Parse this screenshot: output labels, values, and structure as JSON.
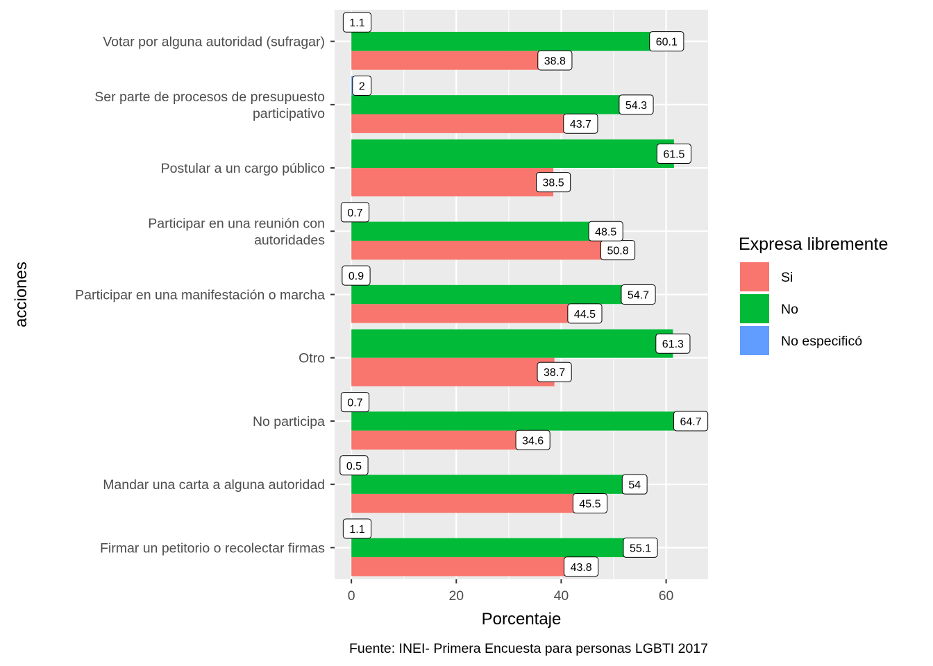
{
  "chart_data": {
    "type": "bar",
    "orientation": "horizontal",
    "title": "",
    "xlabel": "Porcentaje",
    "ylabel": "acciones",
    "xlim": [
      -3.2,
      68
    ],
    "xticks": [
      0,
      20,
      40,
      60
    ],
    "grid": true,
    "legend_position": "right",
    "legend": {
      "title": "Expresa libremente",
      "entries": [
        {
          "name": "Si",
          "color": "#F8766D"
        },
        {
          "name": "No",
          "color": "#00BA38"
        },
        {
          "name": "No especificó",
          "color": "#619CFF"
        }
      ]
    },
    "categories": [
      [
        "Votar por alguna autoridad (sufragar)"
      ],
      [
        "Ser parte de procesos de presupuesto",
        "participativo"
      ],
      [
        "Postular a un cargo público"
      ],
      [
        "Participar en una reunión con",
        "autoridades"
      ],
      [
        "Participar en una manifestación o marcha"
      ],
      [
        "Otro"
      ],
      [
        "No participa"
      ],
      [
        "Mandar una carta a alguna autoridad"
      ],
      [
        "Firmar un petitorio o recolectar firmas"
      ]
    ],
    "series": [
      {
        "name": "Si",
        "color": "#F8766D",
        "values": [
          38.8,
          43.7,
          38.5,
          50.8,
          44.5,
          38.7,
          34.6,
          45.5,
          43.8
        ]
      },
      {
        "name": "No",
        "color": "#00BA38",
        "values": [
          60.1,
          54.3,
          61.5,
          48.5,
          54.7,
          61.3,
          64.7,
          54,
          55.1
        ]
      },
      {
        "name": "No especificó",
        "color": "#619CFF",
        "values": [
          1.1,
          2,
          null,
          0.7,
          0.9,
          null,
          0.7,
          0.5,
          1.1
        ]
      }
    ]
  },
  "caption": "Fuente: INEI- Primera Encuesta para personas LGBTI 2017"
}
